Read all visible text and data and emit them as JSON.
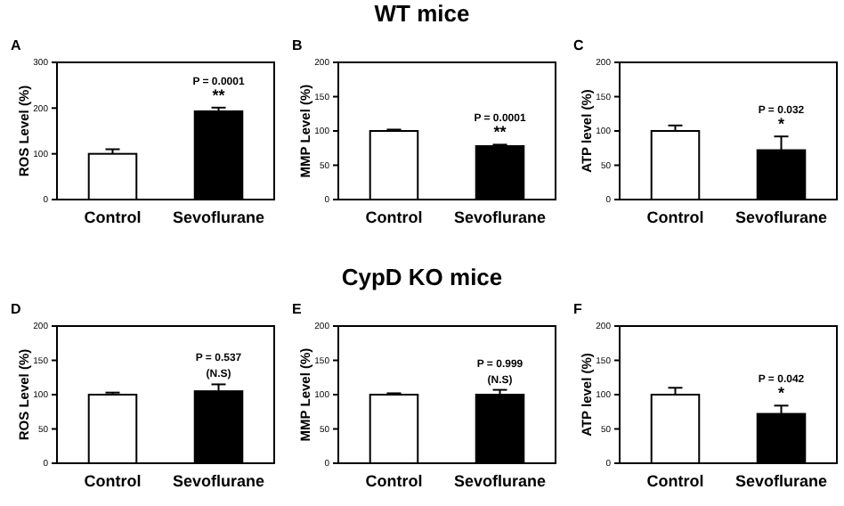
{
  "chart_data": [
    {
      "type": "bar",
      "title": "A",
      "ylabel": "ROS Level (%)",
      "categories": [
        "Control",
        "Sevoflurane"
      ],
      "values": [
        100,
        193
      ],
      "errors": [
        10,
        8
      ],
      "colors": [
        "#ffffff",
        "#000000"
      ],
      "ylim": [
        0,
        300
      ],
      "yticks": [
        0,
        100,
        200,
        300
      ],
      "annotations": [
        "P = 0.0001",
        "**"
      ]
    },
    {
      "type": "bar",
      "subtitle": "WT mice",
      "title": "B",
      "ylabel": "MMP Level (%)",
      "categories": [
        "Control",
        "Sevoflurane"
      ],
      "values": [
        100,
        78
      ],
      "errors": [
        2,
        2
      ],
      "colors": [
        "#ffffff",
        "#000000"
      ],
      "ylim": [
        0,
        200
      ],
      "yticks": [
        0,
        50,
        100,
        150,
        200
      ],
      "annotations": [
        "P = 0.0001",
        "**"
      ]
    },
    {
      "type": "bar",
      "title": "C",
      "ylabel": "ATP level (%)",
      "categories": [
        "Control",
        "Sevoflurane"
      ],
      "values": [
        100,
        72
      ],
      "errors": [
        8,
        20
      ],
      "colors": [
        "#ffffff",
        "#000000"
      ],
      "ylim": [
        0,
        200
      ],
      "yticks": [
        0,
        50,
        100,
        150,
        200
      ],
      "annotations": [
        "P = 0.032",
        "*"
      ]
    },
    {
      "type": "bar",
      "title": "D",
      "ylabel": "ROS Level (%)",
      "categories": [
        "Control",
        "Sevoflurane"
      ],
      "values": [
        100,
        105
      ],
      "errors": [
        3,
        10
      ],
      "colors": [
        "#ffffff",
        "#000000"
      ],
      "ylim": [
        0,
        200
      ],
      "yticks": [
        0,
        50,
        100,
        150,
        200
      ],
      "annotations": [
        "P = 0.537",
        "(N.S)"
      ]
    },
    {
      "type": "bar",
      "subtitle": "CypD KO mice",
      "title": "E",
      "ylabel": "MMP Level (%)",
      "categories": [
        "Control",
        "Sevoflurane"
      ],
      "values": [
        100,
        100
      ],
      "errors": [
        2,
        7
      ],
      "colors": [
        "#ffffff",
        "#000000"
      ],
      "ylim": [
        0,
        200
      ],
      "yticks": [
        0,
        50,
        100,
        150,
        200
      ],
      "annotations": [
        "P = 0.999",
        "(N.S)"
      ]
    },
    {
      "type": "bar",
      "title": "F",
      "ylabel": "ATP level (%)",
      "categories": [
        "Control",
        "Sevoflurane"
      ],
      "values": [
        100,
        72
      ],
      "errors": [
        10,
        12
      ],
      "colors": [
        "#ffffff",
        "#000000"
      ],
      "ylim": [
        0,
        200
      ],
      "yticks": [
        0,
        50,
        100,
        150,
        200
      ],
      "annotations": [
        "P = 0.042",
        "*"
      ]
    }
  ]
}
